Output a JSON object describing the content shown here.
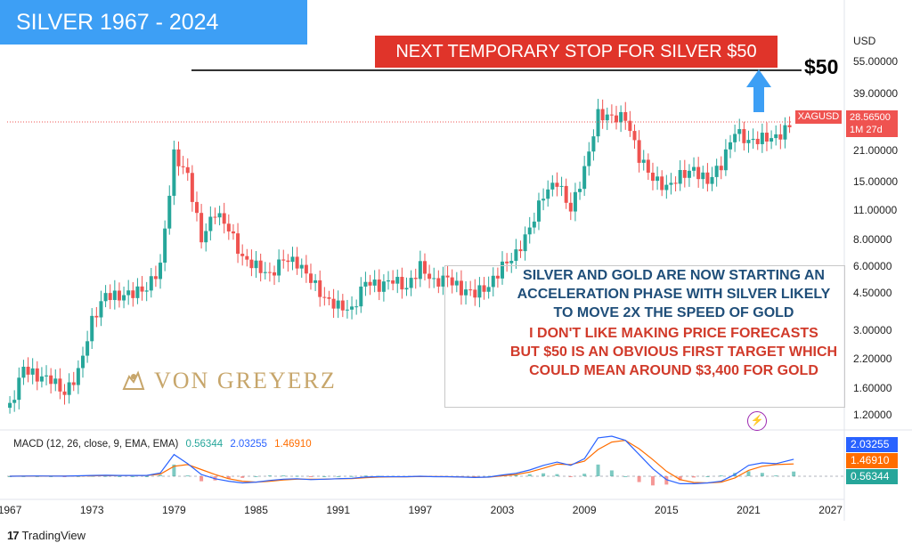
{
  "title": "SILVER 1967 - 2024",
  "callout": "NEXT TEMPORARY STOP FOR SILVER $50",
  "target_label": "$50",
  "currency": "USD",
  "price_scale": {
    "labels": [
      "55.00000",
      "39.00000",
      "28.56500",
      "21.00000",
      "15.00000",
      "11.00000",
      "8.00000",
      "6.00000",
      "4.50000",
      "3.00000",
      "2.20000",
      "1.60000",
      "1.20000"
    ],
    "values": [
      55,
      39,
      28.565,
      21,
      15,
      11,
      8,
      6,
      4.5,
      3,
      2.2,
      1.6,
      1.2
    ]
  },
  "last_price": {
    "symbol": "XAGUSD",
    "price": "28.56500",
    "countdown": "1M 27d"
  },
  "note": {
    "blue_lines": [
      "SILVER AND GOLD ARE NOW STARTING AN",
      "ACCELERATION PHASE WITH SILVER LIKELY",
      "TO MOVE 2X THE SPEED OF GOLD"
    ],
    "red_lines": [
      "I DON'T LIKE MAKING PRICE FORECASTS",
      "BUT $50 IS AN OBVIOUS FIRST TARGET WHICH",
      "COULD MEAN AROUND $3,400 FOR GOLD"
    ]
  },
  "watermark": "VON GREYERZ",
  "macd": {
    "title": "MACD (12, 26, close, 9, EMA, EMA)",
    "histogram": "0.56344",
    "macd": "2.03255",
    "signal": "1.46910"
  },
  "x_axis": {
    "labels": [
      "1967",
      "1973",
      "1979",
      "1985",
      "1991",
      "1997",
      "2003",
      "2009",
      "2015",
      "2021",
      "2027"
    ],
    "years": [
      1967,
      1973,
      1979,
      1985,
      1991,
      1997,
      2003,
      2009,
      2015,
      2021,
      2027
    ]
  },
  "branding": "TradingView",
  "colors": {
    "up": "#26a69a",
    "down": "#ef5350",
    "title_bg": "#3d9ff5",
    "callout_bg": "#e0342a",
    "macd_line": "#2962ff",
    "signal_line": "#ff6d00",
    "arrow": "#3d9ff5",
    "hist_up": "#26a69a",
    "hist_down": "#ef5350"
  },
  "chart_data": {
    "type": "candlestick",
    "scale": "log",
    "ylim": [
      1.15,
      60
    ],
    "xlim": [
      1966.8,
      2028
    ],
    "target_line": 50,
    "years": [
      1967,
      1968,
      1969,
      1970,
      1971,
      1972,
      1973,
      1974,
      1975,
      1976,
      1977,
      1978,
      1979,
      1980,
      1981,
      1982,
      1983,
      1984,
      1985,
      1986,
      1987,
      1988,
      1989,
      1990,
      1991,
      1992,
      1993,
      1994,
      1995,
      1996,
      1997,
      1998,
      1999,
      2000,
      2001,
      2002,
      2003,
      2004,
      2005,
      2006,
      2007,
      2008,
      2009,
      2010,
      2011,
      2012,
      2013,
      2014,
      2015,
      2016,
      2017,
      2018,
      2019,
      2020,
      2021,
      2022,
      2023,
      2024.3
    ],
    "prices": [
      1.29,
      2.0,
      1.8,
      1.77,
      1.5,
      1.9,
      3.3,
      4.4,
      4.3,
      4.5,
      4.7,
      6.0,
      20.0,
      16.0,
      8.0,
      10.8,
      9.0,
      6.5,
      6.0,
      5.4,
      6.5,
      6.2,
      5.2,
      4.2,
      3.9,
      3.7,
      5.1,
      4.8,
      5.2,
      4.7,
      6.0,
      5.0,
      5.3,
      4.6,
      4.5,
      4.8,
      6.0,
      6.8,
      9.0,
      13.0,
      15.0,
      11.0,
      17.0,
      31.0,
      30.0,
      30.0,
      19.5,
      15.5,
      14.0,
      16.0,
      17.0,
      15.0,
      18.0,
      26.0,
      23.0,
      24.0,
      24.0,
      28.565
    ],
    "macd_line": [
      0,
      0.02,
      0.03,
      0.02,
      0.01,
      0.05,
      0.1,
      0.12,
      0.1,
      0.1,
      0.1,
      0.4,
      2.6,
      1.5,
      0.2,
      -0.3,
      -0.6,
      -0.8,
      -0.7,
      -0.5,
      -0.35,
      -0.3,
      -0.4,
      -0.35,
      -0.3,
      -0.25,
      -0.1,
      -0.05,
      -0.05,
      -0.05,
      0.0,
      -0.05,
      -0.05,
      -0.1,
      -0.15,
      -0.1,
      0.15,
      0.35,
      0.75,
      1.3,
      1.7,
      1.3,
      2.1,
      4.6,
      4.8,
      4.3,
      2.6,
      0.9,
      -0.4,
      -0.9,
      -0.9,
      -0.8,
      -0.6,
      0.2,
      1.3,
      1.6,
      1.5,
      2.03255
    ],
    "signal_line": [
      0,
      0.01,
      0.02,
      0.02,
      0.02,
      0.03,
      0.05,
      0.08,
      0.09,
      0.1,
      0.1,
      0.25,
      1.2,
      1.4,
      0.8,
      0.2,
      -0.3,
      -0.6,
      -0.7,
      -0.6,
      -0.45,
      -0.35,
      -0.35,
      -0.35,
      -0.3,
      -0.28,
      -0.18,
      -0.1,
      -0.07,
      -0.06,
      -0.03,
      -0.04,
      -0.05,
      -0.08,
      -0.12,
      -0.11,
      0.05,
      0.2,
      0.5,
      0.95,
      1.45,
      1.4,
      1.8,
      3.2,
      4.1,
      4.3,
      3.3,
      2.0,
      0.6,
      -0.4,
      -0.75,
      -0.8,
      -0.7,
      -0.2,
      0.7,
      1.2,
      1.4,
      1.4691
    ]
  }
}
